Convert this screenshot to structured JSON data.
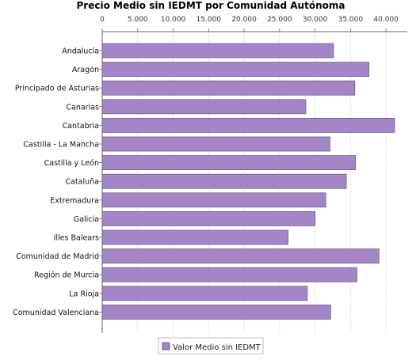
{
  "chart_data": {
    "type": "bar",
    "orientation": "horizontal",
    "title": "Precio Medio sin IEDMT por Comunidad Autónoma",
    "xlabel": "",
    "ylabel": "",
    "xlim": [
      0,
      43000
    ],
    "ticks": [
      0,
      5000,
      10000,
      15000,
      20000,
      25000,
      30000,
      35000,
      40000
    ],
    "tick_labels": [
      "0",
      "5.000",
      "10.000",
      "15.000",
      "20.000",
      "25.000",
      "30.000",
      "35.000",
      "40.000"
    ],
    "grid": true,
    "legend_position": "bottom",
    "categories": [
      "Andalucía",
      "Aragón",
      "Principado de Asturias",
      "Canarias",
      "Cantabria",
      "Castilla - La Mancha",
      "Castilla y León",
      "Cataluña",
      "Extremadura",
      "Galicia",
      "Illes Balears",
      "Comunidad de Madrid",
      "Región de Murcia",
      "La Rioja",
      "Comunidad Valenciana"
    ],
    "series": [
      {
        "name": "Valor Medio sin IEDMT",
        "color": "#a486c8",
        "values": [
          32600,
          37600,
          35600,
          28700,
          41200,
          32100,
          35700,
          34400,
          31500,
          30000,
          26200,
          39000,
          35900,
          28900,
          32200
        ]
      }
    ]
  }
}
